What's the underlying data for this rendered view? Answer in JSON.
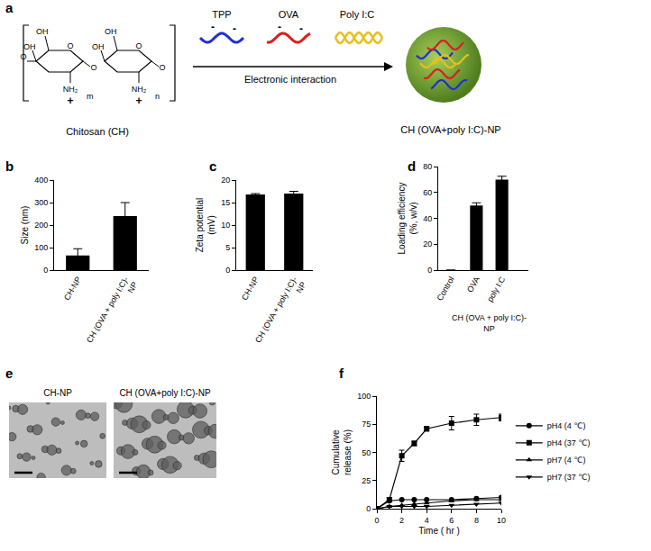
{
  "panel_labels": [
    "a",
    "b",
    "c",
    "d",
    "e",
    "f"
  ],
  "diagram": {
    "polymer_name": "Chitosan (CH)",
    "hydroxyl": "OH",
    "amine": "NH₂",
    "ring_oxygen": "O",
    "polymer_charge": "+",
    "repeat_units": [
      "m",
      "n"
    ],
    "components": [
      "TPP",
      "OVA",
      "Poly I:C"
    ],
    "component_charge": "-",
    "arrow_label": "Electronic interaction",
    "product": "CH (OVA+poly I:C)-NP"
  },
  "chart_data": [
    {
      "type": "bar",
      "categories": [
        "CH-NP",
        "CH (OVA + poly I:C)-\nNP"
      ],
      "values": [
        65,
        240
      ],
      "errors": [
        30,
        60
      ],
      "color": "#000000",
      "ylabel": "Size (nm)",
      "ylim": [
        0,
        400
      ],
      "yticks": [
        0,
        100,
        200,
        300,
        400
      ]
    },
    {
      "type": "bar",
      "categories": [
        "CH-NP",
        "CH (OVA + poly I:C)-\nNP"
      ],
      "values": [
        16.8,
        17.0
      ],
      "errors": [
        0.2,
        0.5
      ],
      "color": "#000000",
      "ylabel": "Zeta potential\n(mV)",
      "ylim": [
        0,
        20
      ],
      "yticks": [
        0,
        5,
        10,
        15,
        20
      ]
    },
    {
      "type": "bar",
      "categories": [
        "Control",
        "OVA",
        "poly I:C"
      ],
      "values": [
        0,
        50,
        70
      ],
      "errors": [
        0,
        2,
        2.5
      ],
      "group_label": "CH (OVA + poly I:C)-\nNP",
      "color": "#000000",
      "ylabel": "Loading efficiency\n(%, w/v)",
      "ylim": [
        0,
        80
      ],
      "yticks": [
        0,
        20,
        40,
        60,
        80
      ]
    },
    {
      "type": "line",
      "x": [
        0,
        1,
        2,
        3,
        4,
        6,
        8,
        10
      ],
      "xlabel": "Time ( hr )",
      "ylabel": "Cumulative\nrelease (%)",
      "xlim": [
        0,
        10
      ],
      "xticks": [
        0,
        2,
        4,
        6,
        8,
        10
      ],
      "ylim": [
        0,
        100
      ],
      "yticks": [
        0,
        25,
        50,
        75,
        100
      ],
      "legend": "right",
      "series": [
        {
          "name": "pH4 (4 ℃)",
          "color": "#000000",
          "marker": "circle",
          "values": [
            0,
            7,
            8,
            8,
            8,
            8,
            9,
            10
          ]
        },
        {
          "name": "pH4 (37 ℃)",
          "color": "#000000",
          "marker": "square",
          "values": [
            0,
            8,
            47,
            58,
            71,
            76,
            79,
            81
          ],
          "errors": [
            0,
            2,
            5,
            2,
            2,
            6,
            5,
            3
          ]
        },
        {
          "name": "pH7 (4 ℃)",
          "color": "#000000",
          "marker": "triangle-up",
          "values": [
            0,
            2,
            3,
            4,
            5,
            7,
            8,
            8
          ]
        },
        {
          "name": "pH7 (37 ℃)",
          "color": "#000000",
          "marker": "triangle-down",
          "values": [
            0,
            2,
            2,
            2,
            2,
            3,
            4,
            5
          ]
        }
      ]
    }
  ],
  "images": {
    "labels": [
      "CH-NP",
      "CH (OVA+poly I:C)-NP"
    ]
  }
}
